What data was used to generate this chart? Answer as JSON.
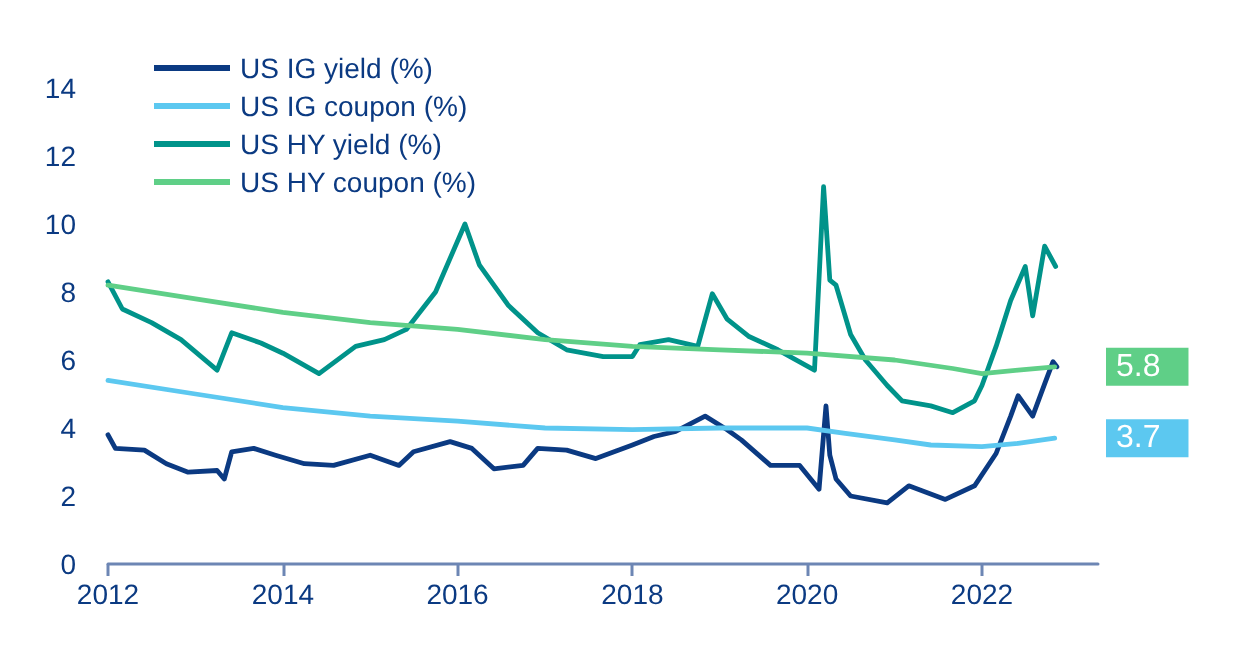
{
  "chart_data": {
    "type": "line",
    "xlim": [
      "2012-01",
      "2023-05"
    ],
    "ylim": [
      0,
      14
    ],
    "xticks": [
      "2012",
      "2014",
      "2016",
      "2018",
      "2020",
      "2022"
    ],
    "yticks": [
      0,
      2,
      4,
      6,
      8,
      10,
      12,
      14
    ],
    "grid": false,
    "legend": "top left",
    "marker": "none",
    "line_style": "solid",
    "series": [
      {
        "name": "US IG yield (%)",
        "color": "#0b3a82",
        "x": [
          "2012-01",
          "2012-02",
          "2012-06",
          "2012-09",
          "2012-12",
          "2013-04",
          "2013-05",
          "2013-06",
          "2013-09",
          "2013-12",
          "2014-04",
          "2014-08",
          "2015-01",
          "2015-05",
          "2015-07",
          "2015-12",
          "2016-03",
          "2016-06",
          "2016-10",
          "2016-12",
          "2017-04",
          "2017-08",
          "2018-01",
          "2018-04",
          "2018-07",
          "2018-11",
          "2019-02",
          "2019-04",
          "2019-08",
          "2019-12",
          "2020-02-20",
          "2020-03-20",
          "2020-04-05",
          "2020-05",
          "2020-07",
          "2020-12",
          "2021-03",
          "2021-08",
          "2021-12",
          "2022-03",
          "2022-05",
          "2022-06",
          "2022-08",
          "2022-09-20",
          "2022-10-25",
          "2022-11-10"
        ],
        "values": [
          3.8,
          3.4,
          3.35,
          2.95,
          2.7,
          2.75,
          2.5,
          3.3,
          3.4,
          3.2,
          2.95,
          2.9,
          3.2,
          2.9,
          3.3,
          3.6,
          3.4,
          2.8,
          2.9,
          3.4,
          3.35,
          3.1,
          3.5,
          3.75,
          3.9,
          4.35,
          3.95,
          3.65,
          2.9,
          2.9,
          2.2,
          4.65,
          3.2,
          2.5,
          2.0,
          1.8,
          2.3,
          1.9,
          2.3,
          3.25,
          4.35,
          4.95,
          4.35,
          5.3,
          5.95,
          5.8
        ]
      },
      {
        "name": "US IG coupon (%)",
        "color": "#5cc8f0",
        "x": [
          "2012-01",
          "2013-01",
          "2014-01",
          "2015-01",
          "2016-01",
          "2017-01",
          "2018-01",
          "2019-01",
          "2020-01",
          "2020-06",
          "2021-01",
          "2021-06",
          "2022-01",
          "2022-06",
          "2022-11"
        ],
        "values": [
          5.4,
          5.0,
          4.6,
          4.35,
          4.2,
          4.0,
          3.95,
          4.0,
          4.0,
          3.85,
          3.65,
          3.5,
          3.45,
          3.55,
          3.7
        ]
      },
      {
        "name": "US HY yield (%)",
        "color": "#00938a",
        "x": [
          "2012-01",
          "2012-03",
          "2012-07",
          "2012-11",
          "2013-04",
          "2013-06",
          "2013-10",
          "2014-01",
          "2014-06",
          "2014-11",
          "2015-03",
          "2015-06",
          "2015-10",
          "2016-02",
          "2016-04",
          "2016-08",
          "2016-12",
          "2017-04",
          "2017-09",
          "2018-01",
          "2018-02",
          "2018-06",
          "2018-10",
          "2018-12",
          "2019-02",
          "2019-05",
          "2019-09",
          "2020-02-01",
          "2020-03-10",
          "2020-04-05",
          "2020-05",
          "2020-07",
          "2020-09",
          "2020-12",
          "2021-02",
          "2021-06",
          "2021-09",
          "2021-12",
          "2022-01",
          "2022-03",
          "2022-05",
          "2022-07",
          "2022-08",
          "2022-09-20",
          "2022-11-05"
        ],
        "values": [
          8.3,
          7.5,
          7.1,
          6.6,
          5.7,
          6.8,
          6.5,
          6.2,
          5.6,
          6.4,
          6.6,
          6.9,
          8.0,
          10.0,
          8.8,
          7.6,
          6.8,
          6.3,
          6.1,
          6.1,
          6.45,
          6.6,
          6.4,
          7.95,
          7.2,
          6.7,
          6.3,
          5.7,
          11.1,
          8.35,
          8.2,
          6.75,
          6.0,
          5.25,
          4.8,
          4.65,
          4.45,
          4.8,
          5.25,
          6.4,
          7.75,
          8.75,
          7.3,
          9.35,
          8.75
        ]
      },
      {
        "name": "US HY coupon (%)",
        "color": "#5fcf87",
        "x": [
          "2012-01",
          "2013-01",
          "2014-01",
          "2015-01",
          "2016-01",
          "2017-01",
          "2018-01",
          "2019-01",
          "2020-01",
          "2021-01",
          "2021-09",
          "2022-01",
          "2022-06",
          "2022-11"
        ],
        "values": [
          8.2,
          7.8,
          7.4,
          7.1,
          6.9,
          6.6,
          6.4,
          6.3,
          6.2,
          6.0,
          5.75,
          5.6,
          5.7,
          5.8
        ]
      }
    ],
    "annotations": [
      {
        "text": "5.8",
        "x": "2022-11",
        "y": 5.8
      },
      {
        "text": "3.7",
        "x": "2022-11",
        "y": 3.7
      }
    ]
  }
}
